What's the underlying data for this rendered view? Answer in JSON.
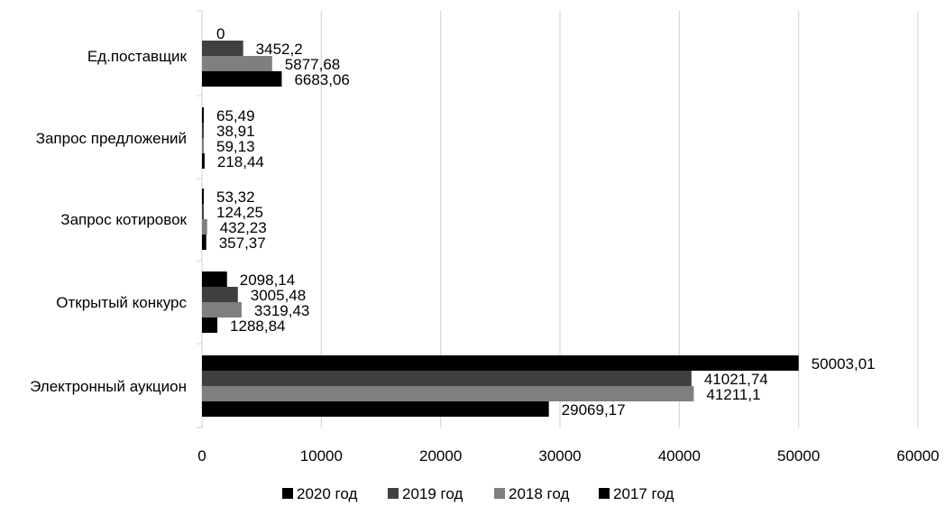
{
  "chart_data": {
    "type": "bar",
    "orientation": "horizontal",
    "categories": [
      "Ед.поставщик",
      "Запрос предложений",
      "Запрос котировок",
      "Открытый конкурс",
      "Электронный аукцион"
    ],
    "series": [
      {
        "name": "2020 год",
        "color": "#000000",
        "values": [
          0,
          65.49,
          53.32,
          2098.14,
          50003.01
        ],
        "labels": [
          "0",
          "65,49",
          "53,32",
          "2098,14",
          "50003,01"
        ]
      },
      {
        "name": "2019 год",
        "color": "#404040",
        "values": [
          3452.2,
          38.91,
          124.25,
          3005.48,
          41021.74
        ],
        "labels": [
          "3452,2",
          "38,91",
          "124,25",
          "3005,48",
          "41021,74"
        ]
      },
      {
        "name": "2018 год",
        "color": "#7f7f7f",
        "values": [
          5877.68,
          59.13,
          432.23,
          3319.43,
          41211.1
        ],
        "labels": [
          "5877,68",
          "59,13",
          "432,23",
          "3319,43",
          "41211,1"
        ]
      },
      {
        "name": "2017 год",
        "color": "#000000",
        "values": [
          6683.06,
          218.44,
          357.37,
          1288.84,
          29069.17
        ],
        "labels": [
          "6683,06",
          "218,44",
          "357,37",
          "1288,84",
          "29069,17"
        ]
      }
    ],
    "xlim": [
      0,
      60000
    ],
    "xticks": [
      "0",
      "10000",
      "20000",
      "30000",
      "40000",
      "50000",
      "60000"
    ],
    "grid": true,
    "legend_position": "bottom"
  }
}
